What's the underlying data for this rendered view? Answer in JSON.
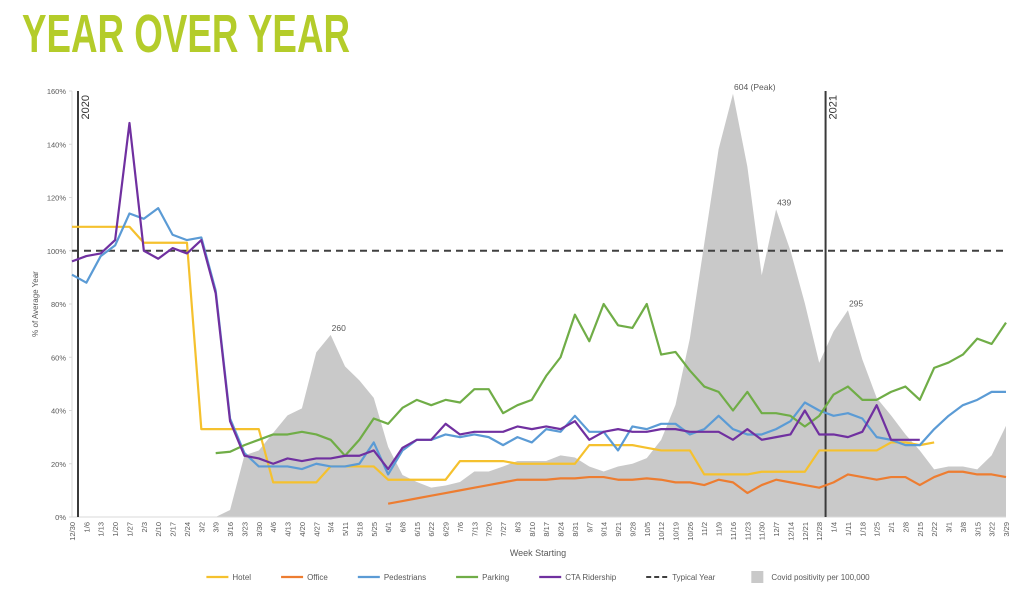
{
  "chart_data": {
    "type": "line",
    "title": "YEAR OVER YEAR",
    "x_label": "Week Starting",
    "y_label": "% of Average Year",
    "categories": [
      "12/30",
      "1/6",
      "1/13",
      "1/20",
      "1/27",
      "2/3",
      "2/10",
      "2/17",
      "2/24",
      "3/2",
      "3/9",
      "3/16",
      "3/23",
      "3/30",
      "4/6",
      "4/13",
      "4/20",
      "4/27",
      "5/4",
      "5/11",
      "5/18",
      "5/25",
      "6/1",
      "6/8",
      "6/15",
      "6/22",
      "6/29",
      "7/6",
      "7/13",
      "7/20",
      "7/27",
      "8/3",
      "8/10",
      "8/17",
      "8/24",
      "8/31",
      "9/7",
      "9/14",
      "9/21",
      "9/28",
      "10/5",
      "10/12",
      "10/19",
      "10/26",
      "11/2",
      "11/9",
      "11/16",
      "11/23",
      "11/30",
      "12/7",
      "12/14",
      "12/21",
      "12/28",
      "1/4",
      "1/11",
      "1/18",
      "1/25",
      "2/1",
      "2/8",
      "2/15",
      "2/22",
      "3/1",
      "3/8",
      "3/15",
      "3/22",
      "3/29"
    ],
    "ylim": [
      0,
      160
    ],
    "yticks": [
      {
        "value": 0,
        "label": "0%"
      },
      {
        "value": 20,
        "label": "20%"
      },
      {
        "value": 40,
        "label": "40%"
      },
      {
        "value": 60,
        "label": "60%"
      },
      {
        "value": 80,
        "label": "80%"
      },
      {
        "value": 100,
        "label": "100%"
      },
      {
        "value": 120,
        "label": "120%"
      },
      {
        "value": 140,
        "label": "140%"
      },
      {
        "value": 160,
        "label": "160%"
      }
    ],
    "y2lim": [
      0,
      608
    ],
    "grid": false,
    "legend": "bottom",
    "year_markers": [
      {
        "label": "2020",
        "at": "12/30"
      },
      {
        "label": "2021",
        "at": "1/4"
      }
    ],
    "reference_line": {
      "name": "Typical Year",
      "value": 100,
      "color": "#404040"
    },
    "covid": {
      "name": "Covid positivity per 100,000",
      "type": "area",
      "axis": "y2",
      "color": "#c9c9c9",
      "values": [
        null,
        null,
        null,
        null,
        null,
        null,
        null,
        null,
        null,
        null,
        0,
        10,
        88,
        95,
        120,
        145,
        155,
        235,
        260,
        215,
        195,
        170,
        100,
        60,
        50,
        42,
        45,
        50,
        65,
        65,
        72,
        80,
        80,
        80,
        88,
        85,
        72,
        65,
        72,
        76,
        84,
        110,
        160,
        255,
        390,
        525,
        604,
        500,
        345,
        439,
        380,
        305,
        220,
        265,
        295,
        225,
        170,
        145,
        118,
        95,
        68,
        72,
        72,
        68,
        88,
        130
      ],
      "value_labels": [
        null,
        null,
        null,
        null,
        null,
        null,
        null,
        null,
        null,
        null,
        null,
        null,
        null,
        null,
        null,
        null,
        null,
        null,
        "260",
        null,
        null,
        null,
        null,
        null,
        null,
        null,
        null,
        null,
        null,
        null,
        null,
        null,
        null,
        null,
        null,
        null,
        null,
        null,
        null,
        null,
        null,
        null,
        null,
        null,
        null,
        null,
        "604 (Peak)",
        null,
        null,
        "439",
        null,
        null,
        null,
        null,
        "295",
        null,
        null,
        null,
        null,
        null,
        null,
        null,
        null,
        null,
        null,
        null
      ]
    },
    "series": [
      {
        "name": "Hotel",
        "color": "#f5c12e",
        "values": [
          109,
          109,
          109,
          109,
          109,
          103,
          103,
          103,
          103,
          33,
          33,
          33,
          33,
          33,
          13,
          13,
          13,
          13,
          19,
          19,
          19,
          19,
          14,
          14,
          14,
          14,
          14,
          21,
          21,
          21,
          21,
          20,
          20,
          20,
          20,
          20,
          27,
          27,
          27,
          27,
          26,
          25,
          25,
          25,
          16,
          16,
          16,
          16,
          17,
          17,
          17,
          17,
          25,
          25,
          25,
          25,
          25,
          28,
          28,
          27,
          28,
          null,
          null,
          null,
          null,
          null
        ]
      },
      {
        "name": "Office",
        "color": "#ed7d31",
        "values": [
          null,
          null,
          null,
          null,
          null,
          null,
          null,
          null,
          null,
          null,
          null,
          null,
          null,
          null,
          null,
          null,
          null,
          null,
          null,
          null,
          null,
          null,
          5,
          6,
          7,
          8,
          9,
          10,
          11,
          12,
          13,
          14,
          14,
          14,
          14.5,
          14.5,
          15,
          15,
          14,
          14,
          14.5,
          14,
          13,
          13,
          12,
          14,
          13,
          9,
          12,
          14,
          13,
          12,
          11,
          13,
          16,
          15,
          14,
          15,
          15,
          12,
          15,
          17,
          17,
          16,
          16,
          15
        ]
      },
      {
        "name": "Pedestrians",
        "color": "#5b9bd5",
        "values": [
          91,
          88,
          98,
          102,
          114,
          112,
          116,
          106,
          104,
          105,
          85,
          37,
          24,
          19,
          19,
          19,
          18,
          20,
          19,
          19,
          20,
          28,
          16,
          25,
          29,
          29,
          31,
          30,
          31,
          30,
          27,
          30,
          28,
          33,
          32,
          38,
          32,
          32,
          25,
          34,
          33,
          35,
          35,
          31,
          33,
          38,
          33,
          31,
          31,
          33,
          36,
          43,
          40,
          38,
          39,
          37,
          30,
          29,
          27,
          27,
          33,
          38,
          42,
          44,
          47,
          47
        ]
      },
      {
        "name": "Parking",
        "color": "#70ad47",
        "values": [
          null,
          null,
          null,
          null,
          null,
          null,
          null,
          null,
          null,
          null,
          24,
          24.5,
          27,
          29,
          31,
          31,
          32,
          31,
          29,
          23,
          29,
          37,
          35,
          41,
          44,
          42,
          44,
          43,
          48,
          48,
          39,
          42,
          44,
          53,
          60,
          76,
          66,
          80,
          72,
          71,
          80,
          61,
          62,
          55,
          49,
          47,
          40,
          47,
          39,
          39,
          38,
          34,
          38,
          46,
          49,
          44,
          44,
          47,
          49,
          44,
          56,
          58,
          61,
          67,
          65,
          73
        ]
      },
      {
        "name": "CTA Ridership",
        "color": "#7030a0",
        "values": [
          96,
          98,
          99,
          104,
          148,
          100,
          97,
          101,
          99,
          104,
          84,
          36,
          23,
          22,
          20,
          22,
          21,
          22,
          22,
          23,
          23,
          25,
          18,
          26,
          29,
          29,
          35,
          31,
          32,
          32,
          32,
          34,
          33,
          34,
          33,
          36,
          29,
          32,
          33,
          32,
          32,
          33,
          33,
          32,
          32,
          32,
          29,
          33,
          29,
          30,
          31,
          40,
          31,
          31,
          30,
          32,
          42,
          29,
          29,
          29,
          null,
          null,
          null,
          null,
          null,
          null
        ]
      }
    ]
  }
}
